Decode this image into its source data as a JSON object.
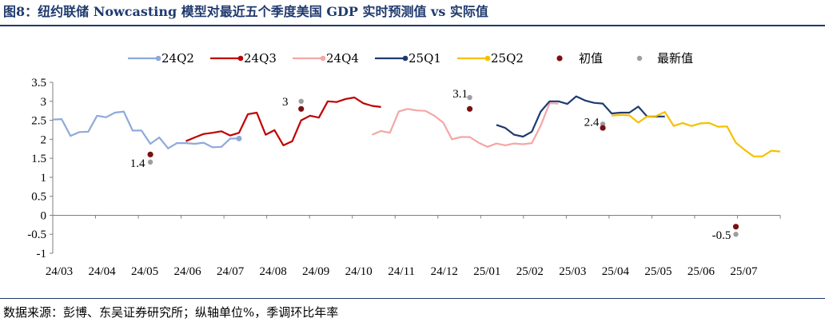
{
  "header": {
    "title": "图8：纽约联储 Nowcasting 模型对最近五个季度美国 GDP 实时预测值 vs 实际值"
  },
  "footer": {
    "source": "数据来源：彭博、东吴证券研究所；纵轴单位%，季调环比年率"
  },
  "chart_data": {
    "type": "line",
    "title": "",
    "xlabel": "",
    "ylabel": "",
    "ylim": [
      -1,
      3.5
    ],
    "y_ticks": [
      "3.5",
      "3",
      "2.5",
      "2",
      "1.5",
      "1",
      "0.5",
      "0",
      "-0.5",
      "-1"
    ],
    "x_ticks": [
      "24/03",
      "24/04",
      "24/05",
      "24/06",
      "24/07",
      "24/08",
      "24/09",
      "24/10",
      "24/11",
      "24/12",
      "25/01",
      "25/02",
      "25/03",
      "25/04",
      "25/05",
      "25/06",
      "25/07"
    ],
    "legend_position": "top",
    "series": [
      {
        "name": "24Q2",
        "color": "#8eaadb",
        "values": [
          2.52,
          2.53,
          2.09,
          2.19,
          2.2,
          2.62,
          2.58,
          2.7,
          2.73,
          2.23,
          2.23,
          1.88,
          2.05,
          1.76,
          1.9,
          1.9,
          1.88,
          1.91,
          1.79,
          1.8,
          2.02,
          2.02
        ],
        "start_index": 0
      },
      {
        "name": "24Q3",
        "color": "#c00000",
        "values": [
          1.95,
          2.05,
          2.14,
          2.17,
          2.21,
          2.1,
          2.17,
          2.66,
          2.7,
          2.12,
          2.24,
          1.84,
          1.95,
          2.5,
          2.62,
          2.57,
          3.0,
          2.98,
          3.06,
          3.1,
          2.95,
          2.88,
          2.85
        ],
        "start_index": 15
      },
      {
        "name": "24Q4",
        "color": "#f4a6a6",
        "values": [
          2.12,
          2.22,
          2.17,
          2.73,
          2.8,
          2.76,
          2.75,
          2.62,
          2.44,
          2.0,
          2.06,
          2.06,
          1.91,
          1.8,
          1.89,
          1.84,
          1.89,
          1.87,
          1.9,
          2.36,
          2.95,
          2.94
        ],
        "start_index": 36
      },
      {
        "name": "25Q1",
        "color": "#1f3a6e",
        "values": [
          2.38,
          2.3,
          2.12,
          2.07,
          2.2,
          2.73,
          3.0,
          3.0,
          2.93,
          3.13,
          3.02,
          2.96,
          2.94,
          2.68,
          2.7,
          2.7,
          2.86,
          2.6,
          2.6,
          2.6
        ],
        "start_index": 50
      },
      {
        "name": "25Q2",
        "color": "#f5c100",
        "values": [
          2.62,
          2.64,
          2.63,
          2.44,
          2.6,
          2.61,
          2.72,
          2.35,
          2.43,
          2.35,
          2.42,
          2.43,
          2.33,
          2.34,
          1.91,
          1.72,
          1.55,
          1.55,
          1.7,
          1.68
        ],
        "start_index": 63
      }
    ],
    "x_count": 83,
    "initial_values": {
      "name": "初值",
      "color": "#7b1010",
      "points": [
        [
          11,
          1.6
        ],
        [
          28,
          2.8
        ],
        [
          47,
          2.8
        ],
        [
          62,
          2.3
        ],
        [
          77,
          -0.3
        ]
      ]
    },
    "latest_values": {
      "name": "最新值",
      "color": "#9e9e9e",
      "points": [
        [
          11,
          1.4
        ],
        [
          28,
          3.0
        ],
        [
          47,
          3.1
        ],
        [
          62,
          2.4
        ],
        [
          77,
          -0.5
        ]
      ]
    },
    "annotations": [
      {
        "text": "1.4",
        "at": [
          11,
          1.4
        ]
      },
      {
        "text": "3",
        "at": [
          28,
          3.0
        ]
      },
      {
        "text": "3.1",
        "at": [
          47,
          3.1
        ]
      },
      {
        "text": "2.4",
        "at": [
          62,
          2.4
        ]
      },
      {
        "text": "-0.5",
        "at": [
          77,
          -0.5
        ]
      }
    ]
  }
}
